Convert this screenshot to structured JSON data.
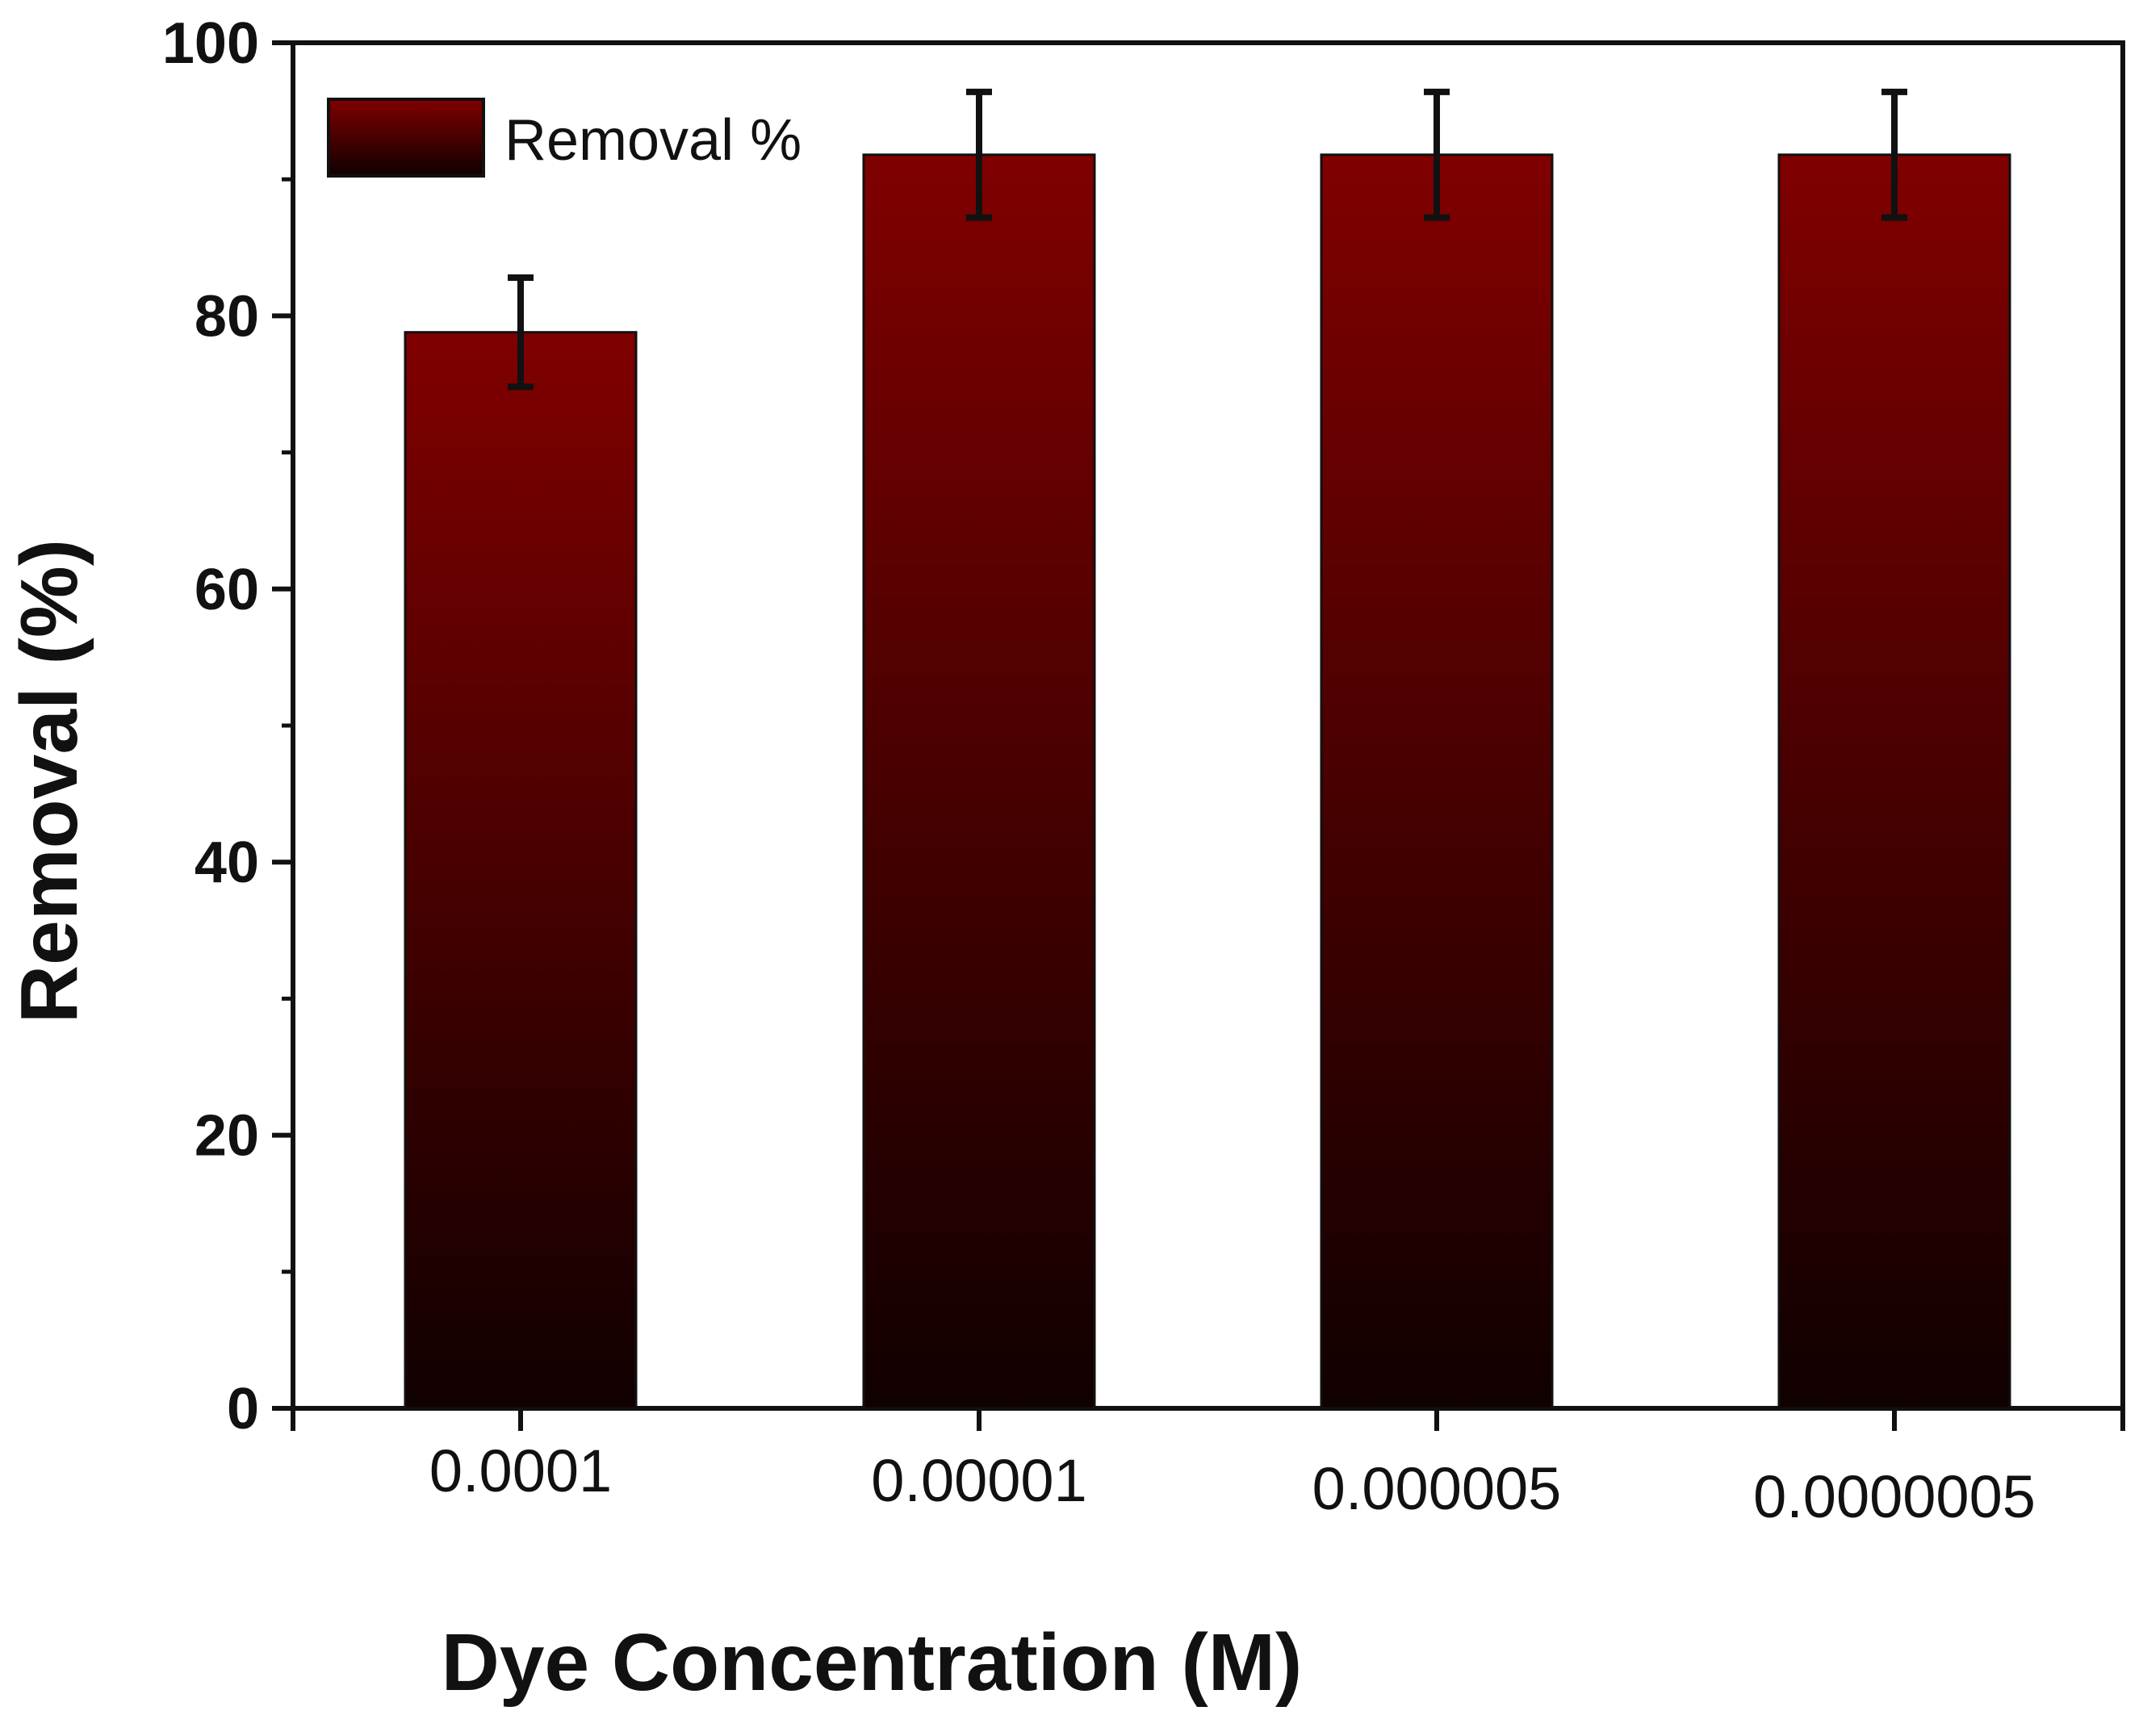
{
  "chart_data": {
    "type": "bar",
    "title": "",
    "xlabel": "Dye Concentration (M)",
    "ylabel": "Removal (%)",
    "categories": [
      "0.0001",
      "0.00001",
      "0.000005",
      "0.0000005"
    ],
    "series": [
      {
        "name": "Removal %",
        "values": [
          78.8,
          91.8,
          91.8,
          91.8
        ],
        "errors": [
          4.0,
          4.6,
          4.6,
          4.6
        ]
      }
    ],
    "ylim": [
      0,
      100
    ],
    "yticks": [
      "0",
      "20",
      "40",
      "60",
      "80",
      "100"
    ],
    "legend_position": "top-left",
    "colors": {
      "bar_top": "#800000",
      "bar_bottom": "#100000",
      "axis": "#111111",
      "error": "#111111"
    }
  }
}
